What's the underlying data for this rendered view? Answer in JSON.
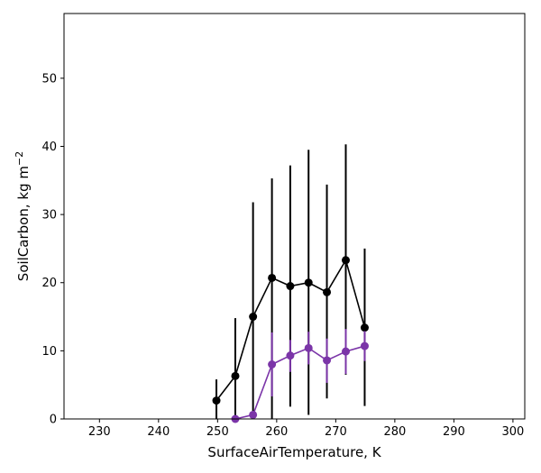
{
  "chart_data": {
    "type": "line",
    "xlabel": "SurfaceAirTemperature,  K",
    "ylabel_main": "SoilCarbon,  kg m",
    "ylabel_sup": "−2",
    "xlim": [
      224,
      302
    ],
    "ylim": [
      0,
      59.5
    ],
    "xticks": [
      230,
      240,
      250,
      260,
      270,
      280,
      290,
      300
    ],
    "yticks": [
      0,
      10,
      20,
      30,
      40,
      50
    ],
    "grid": false,
    "series": [
      {
        "color": "#000000",
        "points": [
          {
            "x": 249.8,
            "y": 2.7,
            "lo": 0.0,
            "hi": 5.8
          },
          {
            "x": 253.0,
            "y": 6.3,
            "lo": 0.0,
            "hi": 14.8
          },
          {
            "x": 256.0,
            "y": 15.0,
            "lo": 0.0,
            "hi": 31.8
          },
          {
            "x": 259.2,
            "y": 20.7,
            "lo": 0.0,
            "hi": 35.3
          },
          {
            "x": 262.3,
            "y": 19.5,
            "lo": 1.8,
            "hi": 37.2
          },
          {
            "x": 265.4,
            "y": 20.0,
            "lo": 0.6,
            "hi": 39.5
          },
          {
            "x": 268.5,
            "y": 18.6,
            "lo": 3.0,
            "hi": 34.4
          },
          {
            "x": 271.7,
            "y": 23.3,
            "lo": 6.5,
            "hi": 40.3
          },
          {
            "x": 274.9,
            "y": 13.4,
            "lo": 1.9,
            "hi": 25.0
          }
        ]
      },
      {
        "color": "#7b35a8",
        "points": [
          {
            "x": 253.0,
            "y": 0.0,
            "lo": 0.0,
            "hi": 0.2
          },
          {
            "x": 256.0,
            "y": 0.6,
            "lo": 0.0,
            "hi": 1.2
          },
          {
            "x": 259.2,
            "y": 8.0,
            "lo": 3.3,
            "hi": 12.7
          },
          {
            "x": 262.3,
            "y": 9.3,
            "lo": 6.9,
            "hi": 11.6
          },
          {
            "x": 265.4,
            "y": 10.4,
            "lo": 8.0,
            "hi": 12.8
          },
          {
            "x": 268.5,
            "y": 8.6,
            "lo": 5.3,
            "hi": 11.8
          },
          {
            "x": 271.7,
            "y": 9.9,
            "lo": 6.6,
            "hi": 13.2
          },
          {
            "x": 274.9,
            "y": 10.7,
            "lo": 8.5,
            "hi": 12.9
          }
        ]
      }
    ]
  }
}
